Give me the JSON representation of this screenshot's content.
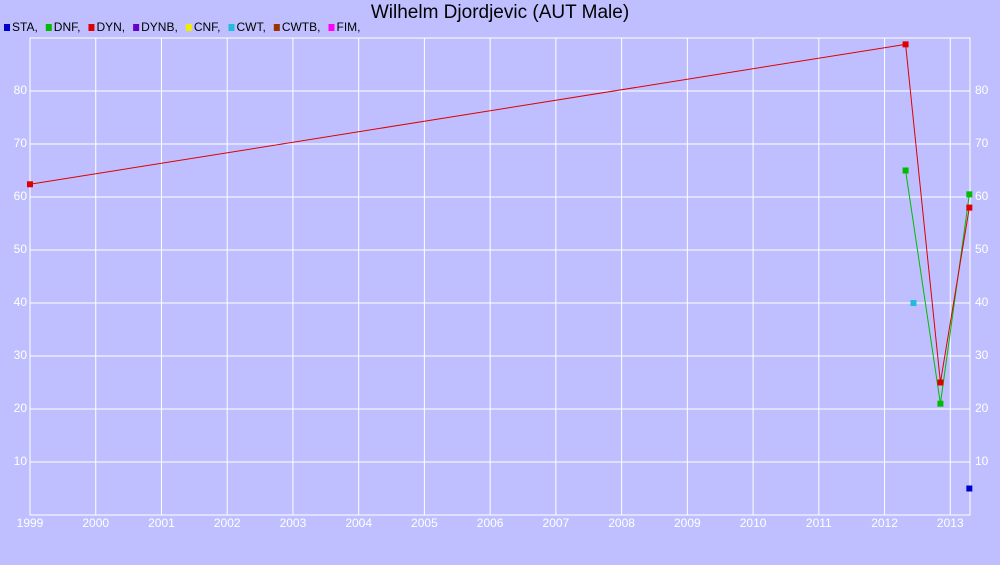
{
  "chart_data": {
    "type": "line",
    "title": "Wilhelm Djordjevic (AUT Male)",
    "series": [
      {
        "name": "STA,",
        "color": "#0000cc",
        "x": [
          2013.29
        ],
        "values": [
          5
        ]
      },
      {
        "name": "DNF,",
        "color": "#00bb00",
        "x": [
          2012.32,
          2012.85,
          2013.29
        ],
        "values": [
          65,
          21,
          60.5
        ]
      },
      {
        "name": "DYN,",
        "color": "#dd0000",
        "x": [
          1999.0,
          2012.32,
          2012.85,
          2013.29
        ],
        "values": [
          62.4,
          88.8,
          25,
          58
        ]
      },
      {
        "name": "DYNB,",
        "color": "#6600cc",
        "x": [],
        "values": []
      },
      {
        "name": "CNF,",
        "color": "#eeee00",
        "x": [],
        "values": []
      },
      {
        "name": "CWT,",
        "color": "#22bbdd",
        "x": [
          2012.44
        ],
        "values": [
          40
        ]
      },
      {
        "name": "CWTB,",
        "color": "#993300",
        "x": [],
        "values": []
      },
      {
        "name": "FIM,",
        "color": "#ff00ff",
        "x": [],
        "values": []
      }
    ],
    "xlim": [
      1999,
      2013.3
    ],
    "xticks": [
      1999,
      2000,
      2001,
      2002,
      2003,
      2004,
      2005,
      2006,
      2007,
      2008,
      2009,
      2010,
      2011,
      2012,
      2013
    ],
    "ylim": [
      0,
      90
    ],
    "yticks": [
      10,
      20,
      30,
      40,
      50,
      60,
      70,
      80
    ],
    "grid": true
  }
}
